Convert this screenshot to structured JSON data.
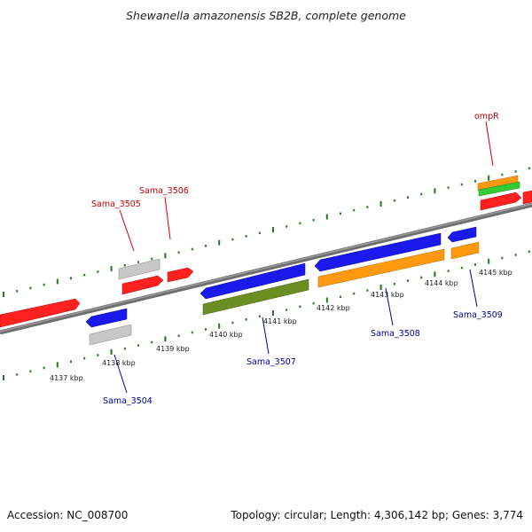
{
  "title": "Shewanella amazonensis SB2B, complete genome",
  "footer": {
    "accession": "Accession: NC_008700",
    "summary": "Topology: circular; Length: 4,306,142 bp; Genes: 3,774"
  },
  "kbp_labels": [
    "4137 kbp",
    "4138 kbp",
    "4139 kbp",
    "4140 kbp",
    "4141 kbp",
    "4142 kbp",
    "4143 kbp",
    "4144 kbp",
    "4145 kbp"
  ],
  "gene_labels": {
    "sama_3504": "Sama_3504",
    "sama_3505": "Sama_3505",
    "sama_3506": "Sama_3506",
    "sama_3507": "Sama_3507",
    "sama_3508": "Sama_3508",
    "sama_3509": "Sama_3509",
    "ompr": "ompR"
  },
  "colors": {
    "backbone": "#808080",
    "tick": "#1f7a1f",
    "forward_label": "#cc0000",
    "reverse_label": "#000099",
    "red_gene": "#ff2020",
    "blue_gene": "#1a1aee",
    "gray_gene": "#c8c8c8",
    "orange_gene": "#ff9910",
    "olive_gene": "#6b8e23",
    "green_gene": "#33cc33"
  }
}
